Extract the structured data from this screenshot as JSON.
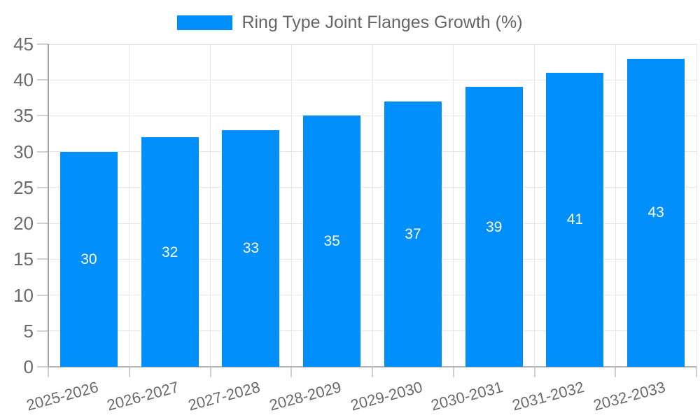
{
  "chart_data": {
    "type": "bar",
    "title": "Ring Type Joint Flanges Growth (%)",
    "categories": [
      "2025-2026",
      "2026-2027",
      "2027-2028",
      "2028-2029",
      "2029-2030",
      "2030-2031",
      "2031-2032",
      "2032-2033"
    ],
    "values": [
      30,
      32,
      33,
      35,
      37,
      39,
      41,
      43
    ],
    "xlabel": "",
    "ylabel": "",
    "ylim": [
      0,
      45
    ],
    "yticks": [
      0,
      5,
      10,
      15,
      20,
      25,
      30,
      35,
      40,
      45
    ],
    "grid": true,
    "legend_position": "top",
    "bar_labels_inside": true,
    "x_label_rotation_deg": -15
  },
  "colors": {
    "bar": "#008FFB",
    "bar_label": "#FFFFFF",
    "grid": "#E7E7E7",
    "axis_line_y": "#A3A3A3",
    "axis_line_x": "#B5B5B5",
    "tick": "#D0D0D0",
    "axis_text": "#6B6B6B",
    "legend_text": "#666666",
    "background": "#FFFFFF"
  }
}
